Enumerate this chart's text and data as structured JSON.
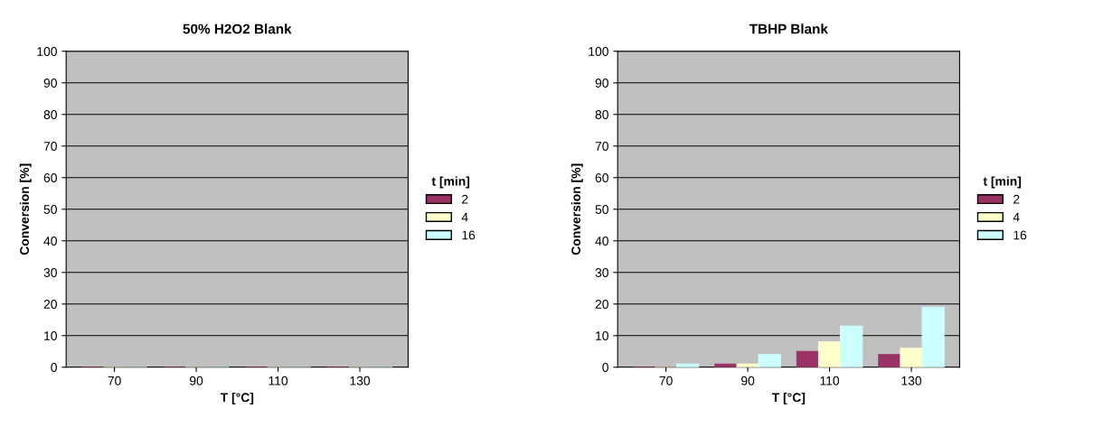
{
  "chart_data": [
    {
      "type": "bar",
      "title": "50% H2O2 Blank",
      "xlabel": "T [°C]",
      "ylabel": "Conversion [%]",
      "legend_title": "t [min]",
      "legend": "right",
      "grid": "y",
      "categories": [
        "70",
        "90",
        "110",
        "130"
      ],
      "ylim": [
        0,
        100
      ],
      "yticks": [
        0,
        10,
        20,
        30,
        40,
        50,
        60,
        70,
        80,
        90,
        100
      ],
      "series": [
        {
          "name": "2",
          "color": "#993366",
          "values": [
            0,
            0,
            0,
            0
          ]
        },
        {
          "name": "4",
          "color": "#ffffcc",
          "values": [
            0,
            0,
            0,
            0
          ]
        },
        {
          "name": "16",
          "color": "#ccffff",
          "values": [
            0,
            0,
            0,
            0
          ]
        }
      ]
    },
    {
      "type": "bar",
      "title": "TBHP Blank",
      "xlabel": "T [°C]",
      "ylabel": "Conversion [%]",
      "legend_title": "t [min]",
      "legend": "right",
      "grid": "y",
      "categories": [
        "70",
        "90",
        "110",
        "130"
      ],
      "ylim": [
        0,
        100
      ],
      "yticks": [
        0,
        10,
        20,
        30,
        40,
        50,
        60,
        70,
        80,
        90,
        100
      ],
      "series": [
        {
          "name": "2",
          "color": "#993366",
          "values": [
            0,
            1,
            5,
            4
          ]
        },
        {
          "name": "4",
          "color": "#ffffcc",
          "values": [
            0,
            1,
            8,
            6
          ]
        },
        {
          "name": "16",
          "color": "#ccffff",
          "values": [
            1,
            4,
            13,
            19
          ]
        }
      ]
    }
  ]
}
